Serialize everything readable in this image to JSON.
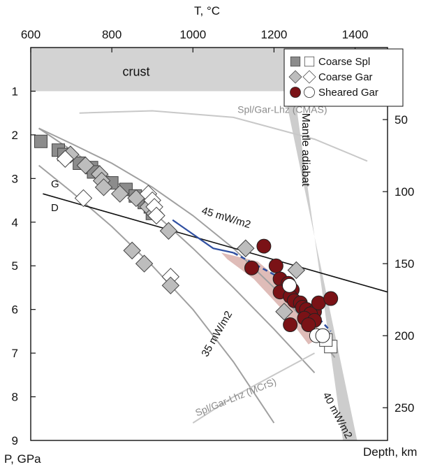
{
  "chart_data": {
    "type": "scatter",
    "title": "",
    "xlabel": "T, °C",
    "ylabel": "P, GPa",
    "y2label": "Depth, km",
    "xlim": [
      600,
      1480
    ],
    "ylim": [
      9,
      0
    ],
    "x_ticks": [
      600,
      800,
      1000,
      1200,
      1400
    ],
    "y_ticks": [
      1,
      2,
      3,
      4,
      5,
      6,
      7,
      8,
      9
    ],
    "y2_ticks": [
      50,
      100,
      150,
      200,
      250
    ],
    "y2_km_per_gpa": 30.3,
    "legend": {
      "placement": "top-right",
      "entries": [
        {
          "label": "Coarse Spl",
          "filled_color": "#8c8c8c",
          "open_color": "#ffffff",
          "marker": "square"
        },
        {
          "label": "Coarse Gar",
          "filled_color": "#bdbdbd",
          "open_color": "#ffffff",
          "marker": "diamond"
        },
        {
          "label": "Sheared Gar",
          "filled_color": "#7a1216",
          "open_color": "#ffffff",
          "marker": "circle"
        }
      ]
    },
    "regions": [
      {
        "label": "crust",
        "ymin": 0,
        "ymax": 1,
        "color": "#d3d3d3"
      }
    ],
    "annotations": [
      {
        "text": "G",
        "x": 650,
        "y": 3.2
      },
      {
        "text": "D",
        "x": 650,
        "y": 3.75
      },
      {
        "text": "45 mW/m2",
        "x": 1020,
        "y": 3.8,
        "rotate": 17
      },
      {
        "text": "35 mW/m2",
        "x": 1035,
        "y": 7.1,
        "rotate": -60
      },
      {
        "text": "40 mW/m2",
        "x": 1320,
        "y": 7.95,
        "rotate": 62
      },
      {
        "text": "Spl/Gar-Lhz (CMAS)",
        "x": 1110,
        "y": 1.5,
        "rotate": 0
      },
      {
        "text": "Spl/Gar-Lhz (MCrS)",
        "x": 1010,
        "y": 8.45,
        "rotate": -22
      },
      {
        "text": "Mantle adiabat",
        "x": 1270,
        "y": 1.5,
        "rotate": 90
      }
    ],
    "lines": [
      {
        "name": "45 mW/m2 geotherm",
        "color": "#a0a0a0",
        "x": [
          620,
          700,
          800,
          900,
          1000,
          1100,
          1200,
          1300,
          1350
        ],
        "y": [
          1.85,
          2.2,
          2.65,
          3.2,
          3.85,
          4.6,
          5.5,
          6.5,
          7.1
        ]
      },
      {
        "name": "40 mW/m2 geotherm",
        "color": "#a0a0a0",
        "x": [
          620,
          700,
          800,
          900,
          1000,
          1100,
          1200,
          1300
        ],
        "y": [
          1.85,
          2.35,
          3.0,
          3.75,
          4.6,
          5.5,
          6.45,
          7.45
        ]
      },
      {
        "name": "35 mW/m2 geotherm",
        "color": "#a0a0a0",
        "x": [
          620,
          700,
          800,
          900,
          1000,
          1100,
          1200
        ],
        "y": [
          2.7,
          3.3,
          4.1,
          5.0,
          6.0,
          7.2,
          8.6
        ]
      },
      {
        "name": "Spl/Gar-Lhz (CMAS)",
        "color": "#c8c8c8",
        "x": [
          720,
          900,
          1100,
          1300,
          1430
        ],
        "y": [
          1.5,
          1.45,
          1.6,
          2.1,
          2.6
        ]
      },
      {
        "name": "Spl/Gar-Lhz (MCrS)",
        "color": "#c8c8c8",
        "x": [
          1000,
          1100,
          1200,
          1300
        ],
        "y": [
          8.6,
          8.0,
          7.5,
          7.0
        ]
      },
      {
        "name": "G-D",
        "color": "#111111",
        "x": [
          630,
          1480
        ],
        "y": [
          3.35,
          5.6
        ]
      },
      {
        "name": "blue trend",
        "color": "#2f4fa1",
        "dashed_from_index": 2,
        "x": [
          950,
          1050,
          1100,
          1200,
          1300,
          1340
        ],
        "y": [
          3.95,
          4.6,
          4.7,
          5.2,
          6.1,
          6.5
        ]
      }
    ],
    "adiabat": {
      "color": "#cdcdcd",
      "x": [
        1225,
        1250,
        1370,
        1405
      ],
      "y": [
        1.0,
        1.0,
        9.0,
        9.0
      ]
    },
    "shaded_region": {
      "color": "#d9b0ac",
      "x": [
        1070,
        1160,
        1250,
        1320,
        1285,
        1220,
        1150,
        1085
      ],
      "y": [
        4.7,
        4.9,
        5.6,
        6.6,
        6.8,
        6.0,
        5.3,
        4.85
      ]
    },
    "series": [
      {
        "name": "Coarse Spl (filled)",
        "marker": "square",
        "color": "#8c8c8c",
        "x": [
          625,
          668,
          682,
          720,
          750,
          755,
          800,
          835,
          858,
          880,
          895,
          900
        ],
        "y": [
          2.15,
          2.35,
          2.45,
          2.65,
          2.75,
          2.85,
          3.1,
          3.25,
          3.4,
          3.55,
          3.65,
          3.8
        ]
      },
      {
        "name": "Coarse Spl (open)",
        "marker": "square",
        "color": "#ffffff",
        "x": [
          1340,
          1328
        ],
        "y": [
          6.85,
          6.7
        ]
      },
      {
        "name": "Coarse Gar (filled)",
        "marker": "diamond",
        "color": "#bdbdbd",
        "x": [
          698,
          735,
          770,
          775,
          780,
          820,
          860,
          890,
          905,
          940,
          1130,
          1255,
          1225
        ],
        "y": [
          2.45,
          2.7,
          2.9,
          3.05,
          3.2,
          3.35,
          3.45,
          3.65,
          3.8,
          4.2,
          4.6,
          5.1,
          6.05
        ]
      },
      {
        "name": "Coarse Gar (open)",
        "marker": "diamond",
        "color": "#ffffff",
        "x": [
          685,
          730,
          890,
          900,
          905,
          910,
          945
        ],
        "y": [
          2.55,
          3.45,
          3.35,
          3.5,
          3.65,
          3.85,
          5.25
        ]
      },
      {
        "name": "Coarse Gar (filled, lower)",
        "marker": "diamond",
        "color": "#bdbdbd",
        "x": [
          850,
          880,
          945
        ],
        "y": [
          4.65,
          4.95,
          5.45
        ]
      },
      {
        "name": "Sheared Gar (filled)",
        "marker": "circle",
        "color": "#7a1216",
        "x": [
          1175,
          1145,
          1205,
          1215,
          1235,
          1245,
          1215,
          1240,
          1250,
          1265,
          1270,
          1280,
          1300,
          1290,
          1275,
          1310,
          1300,
          1285,
          1340,
          1240
        ],
        "y": [
          4.55,
          5.05,
          5.0,
          5.3,
          5.4,
          5.55,
          5.6,
          5.7,
          5.8,
          5.85,
          5.95,
          6.0,
          6.05,
          6.1,
          6.2,
          5.85,
          6.25,
          6.35,
          5.75,
          6.35
        ]
      },
      {
        "name": "Sheared Gar (open)",
        "marker": "circle",
        "color": "#ffffff",
        "x": [
          1238,
          1305,
          1320
        ],
        "y": [
          5.45,
          6.6,
          6.6
        ]
      }
    ]
  }
}
